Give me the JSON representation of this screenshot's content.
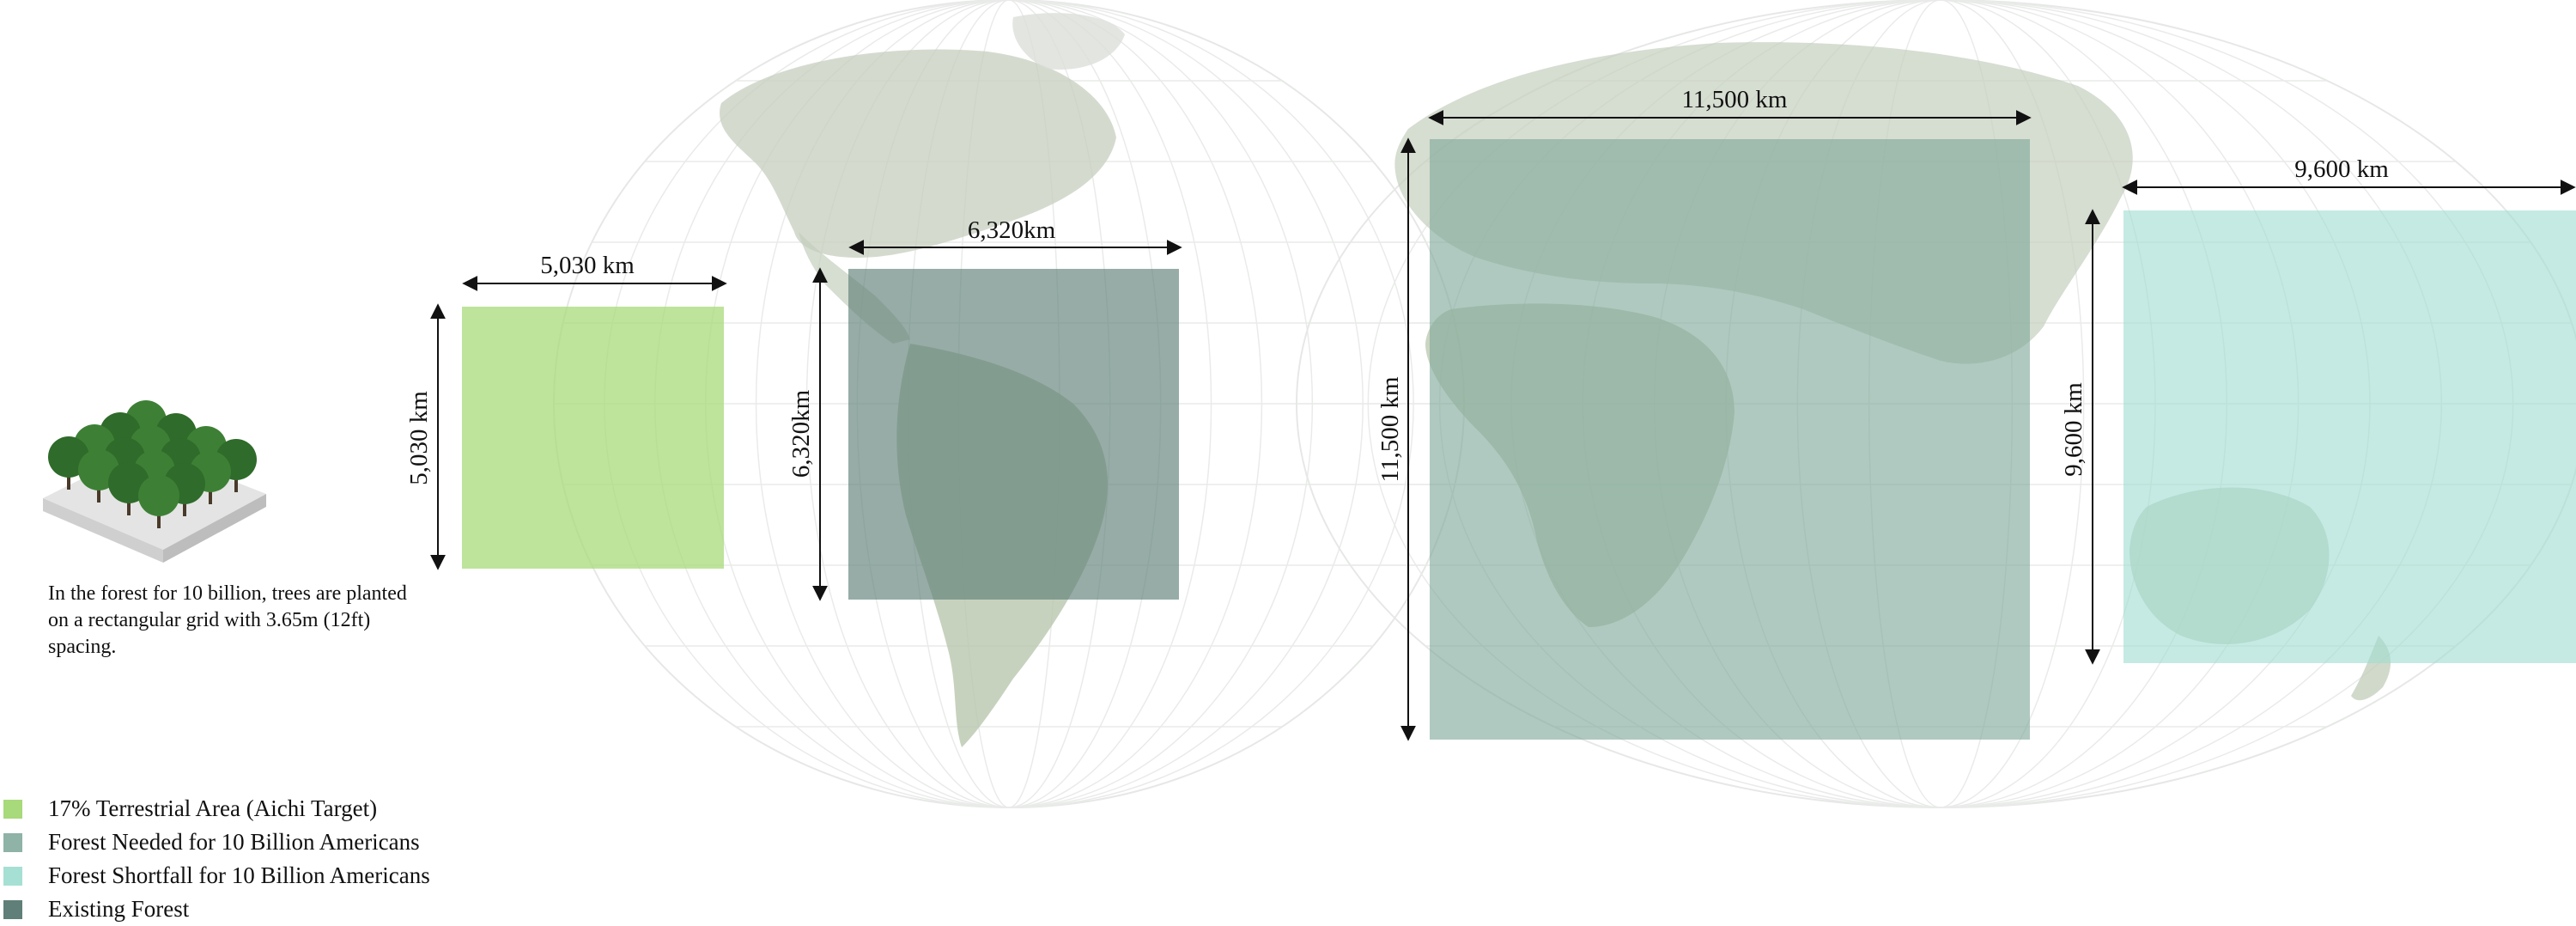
{
  "colors": {
    "aichi": "#a8d97a",
    "needed": "#7fa89a",
    "shortfall": "#9fdcd0",
    "existing": "#5f7f78",
    "land": "#c9d3bf",
    "land_dark": "#8fa88a",
    "graticule": "#e2e4e2"
  },
  "icons": {
    "forest_block": "forest-block-icon"
  },
  "caption": "In the forest for 10 billion, trees are planted on a rectangular grid with 3.65m (12ft) spacing.",
  "legend": [
    {
      "label": "17% Terrestrial Area (Aichi Target)",
      "color": "#a8d97a"
    },
    {
      "label": "Forest Needed for 10 Billion Americans",
      "color": "#8fb3a6"
    },
    {
      "label": "Forest Shortfall for 10 Billion Americans",
      "color": "#a6e0d4"
    },
    {
      "label": "Existing Forest",
      "color": "#5f7f78"
    }
  ],
  "squares": {
    "aichi": {
      "width_label": "5,030 km",
      "height_label": "5,030 km",
      "side_km": 5030
    },
    "existing": {
      "width_label": "6,320km",
      "height_label": "6,320km",
      "side_km": 6320
    },
    "needed": {
      "width_label": "11,500 km",
      "height_label": "11,500 km",
      "side_km": 11500
    },
    "shortfall": {
      "width_label": "9,600 km",
      "height_label": "9,600 km",
      "side_km": 9600
    }
  }
}
